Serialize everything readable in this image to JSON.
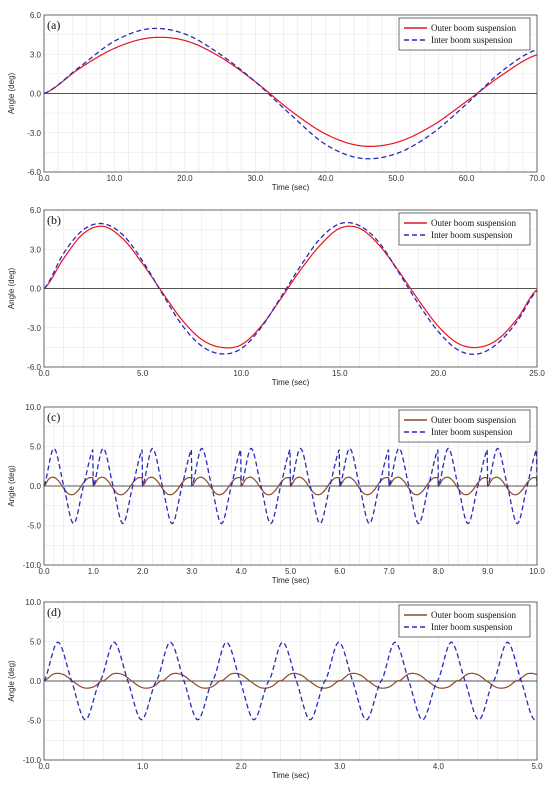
{
  "chart_data": [
    {
      "type": "line",
      "panel_label": "(a)",
      "xlabel": "Time (sec)",
      "ylabel": "Angle (deg)",
      "xlim": [
        0,
        70
      ],
      "ylim": [
        -6,
        6
      ],
      "x_ticks": [
        "0.0",
        "10.0",
        "20.0",
        "30.0",
        "40.0",
        "50.0",
        "60.0",
        "70.0"
      ],
      "y_ticks": [
        "6.0",
        "3.0",
        "0.0",
        "-3.0",
        "-6.0"
      ],
      "grid": true,
      "legend_position": "top-right",
      "series": [
        {
          "name": "Outer boom suspension",
          "color": "#e8141e",
          "dash": "solid",
          "x": [
            0,
            5,
            10,
            15,
            20,
            25,
            30,
            35,
            40,
            45,
            50,
            55,
            60,
            65,
            70
          ],
          "values": [
            0.0,
            1.9,
            3.45,
            4.25,
            4.05,
            2.8,
            0.9,
            -1.3,
            -3.1,
            -4.0,
            -3.75,
            -2.5,
            -0.6,
            1.4,
            2.95
          ]
        },
        {
          "name": "Inter boom suspension",
          "color": "#2a2ab8",
          "dash": "dashed",
          "x": [
            0,
            5,
            10,
            15,
            20,
            25,
            30,
            35,
            40,
            45,
            50,
            55,
            60,
            65,
            70
          ],
          "values": [
            0.0,
            2.0,
            4.0,
            4.95,
            4.55,
            3.0,
            0.9,
            -1.6,
            -3.9,
            -4.95,
            -4.6,
            -3.1,
            -0.8,
            1.7,
            3.35
          ]
        }
      ]
    },
    {
      "type": "line",
      "panel_label": "(b)",
      "xlabel": "Time (sec)",
      "ylabel": "Angle (deg)",
      "xlim": [
        0,
        25
      ],
      "ylim": [
        -6,
        6
      ],
      "x_ticks": [
        "0.0",
        "5.0",
        "10.0",
        "15.0",
        "20.0",
        "25.0"
      ],
      "y_ticks": [
        "6.0",
        "3.0",
        "0.0",
        "-3.0",
        "-6.0"
      ],
      "grid": true,
      "legend_position": "top-right",
      "series": [
        {
          "name": "Outer boom suspension",
          "color": "#e8141e",
          "dash": "solid",
          "x": [
            0,
            1,
            2,
            3,
            4,
            5,
            6,
            7,
            8,
            9,
            10,
            11,
            12,
            13,
            14,
            15,
            16,
            17,
            18,
            19,
            20,
            21,
            22,
            23,
            24,
            25
          ],
          "values": [
            0.0,
            2.3,
            4.2,
            4.75,
            3.8,
            1.9,
            -0.3,
            -2.4,
            -3.9,
            -4.5,
            -4.3,
            -2.9,
            -0.8,
            1.4,
            3.3,
            4.6,
            4.6,
            3.3,
            1.3,
            -0.9,
            -2.9,
            -4.2,
            -4.5,
            -3.9,
            -2.3,
            -0.1
          ]
        },
        {
          "name": "Inter boom suspension",
          "color": "#2a2ab8",
          "dash": "dashed",
          "x": [
            0,
            1,
            2,
            3,
            4,
            5,
            6,
            7,
            8,
            9,
            10,
            11,
            12,
            13,
            14,
            15,
            16,
            17,
            18,
            19,
            20,
            21,
            22,
            23,
            24,
            25
          ],
          "values": [
            0.0,
            2.7,
            4.5,
            4.95,
            4.1,
            2.1,
            -0.4,
            -2.8,
            -4.4,
            -5.0,
            -4.6,
            -3.0,
            -0.7,
            1.7,
            3.8,
            4.95,
            4.8,
            3.5,
            1.2,
            -1.2,
            -3.3,
            -4.7,
            -5.0,
            -4.2,
            -2.5,
            -0.2
          ]
        }
      ]
    },
    {
      "type": "line",
      "panel_label": "(c)",
      "xlabel": "Time (sec)",
      "ylabel": "Angle (deg)",
      "xlim": [
        0,
        10
      ],
      "ylim": [
        -10,
        10
      ],
      "x_ticks": [
        "0.0",
        "1.0",
        "2.0",
        "3.0",
        "4.0",
        "5.0",
        "6.0",
        "7.0",
        "8.0",
        "9.0",
        "10.0"
      ],
      "y_ticks": [
        "10.0",
        "5.0",
        "0.0",
        "-5.0",
        "-10.0"
      ],
      "grid": true,
      "legend_position": "top-right",
      "series": [
        {
          "name": "Outer boom suspension",
          "color": "#8b4a2b",
          "dash": "solid",
          "x": [
            0,
            0.1,
            0.2,
            0.3,
            0.4,
            0.5,
            0.6,
            0.7,
            0.8,
            0.9,
            1.0
          ],
          "values": [
            0.0,
            0.9,
            1.1,
            0.6,
            -0.3,
            -1.0,
            -1.05,
            -0.5,
            0.4,
            1.0,
            1.05
          ],
          "pattern": "repeats with period 0.8 s, amplitude ~1.1"
        },
        {
          "name": "Inter boom suspension",
          "color": "#2a2ab8",
          "dash": "dashed",
          "x": [
            0,
            0.2,
            0.4,
            0.6,
            0.8,
            1.0
          ],
          "values": [
            0.0,
            4.75,
            0.0,
            -4.75,
            0.0,
            4.75
          ],
          "pattern": "repeats with period 0.8 s, amplitude ~5"
        }
      ]
    },
    {
      "type": "line",
      "panel_label": "(d)",
      "xlabel": "Time (sec)",
      "ylabel": "Angle (deg)",
      "xlim": [
        0,
        5
      ],
      "ylim": [
        -10,
        10
      ],
      "x_ticks": [
        "0.0",
        "1.0",
        "2.0",
        "3.0",
        "4.0",
        "5.0"
      ],
      "y_ticks": [
        "10.0",
        "5.0",
        "0.0",
        "-5.0",
        "-10.0"
      ],
      "grid": true,
      "legend_position": "top-right",
      "series": [
        {
          "name": "Outer boom suspension",
          "color": "#8b4a2b",
          "dash": "solid",
          "x": [
            0,
            0.1,
            0.2,
            0.3,
            0.4,
            0.5,
            0.6
          ],
          "values": [
            0.0,
            0.9,
            0.8,
            -0.1,
            -0.85,
            -0.75,
            0.1
          ],
          "pattern": "repeats with period 0.57 s, amplitude ~0.9"
        },
        {
          "name": "Inter boom suspension",
          "color": "#2a2ab8",
          "dash": "dashed",
          "x": [
            0,
            0.14,
            0.28,
            0.42,
            0.57
          ],
          "values": [
            0.0,
            4.9,
            0.0,
            -4.9,
            0.0
          ],
          "pattern": "repeats with period 0.57 s, amplitude ~5"
        }
      ]
    }
  ]
}
